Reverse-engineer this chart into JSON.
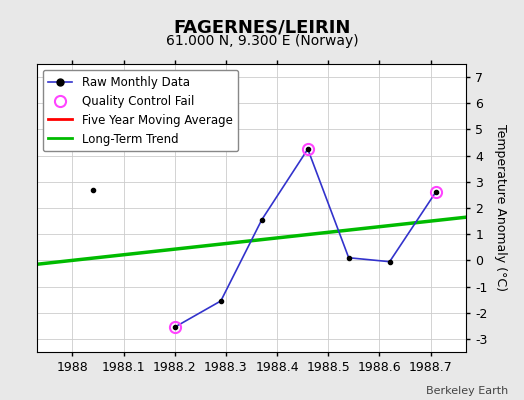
{
  "title": "FAGERNES/LEIRIN",
  "subtitle": "61.000 N, 9.300 E (Norway)",
  "ylabel": "Temperature Anomaly (°C)",
  "credit": "Berkeley Earth",
  "xlim": [
    1987.93,
    1988.77
  ],
  "ylim": [
    -3.5,
    7.5
  ],
  "yticks": [
    -3,
    -2,
    -1,
    0,
    1,
    2,
    3,
    4,
    5,
    6,
    7
  ],
  "xticks": [
    1988.0,
    1988.1,
    1988.2,
    1988.3,
    1988.4,
    1988.5,
    1988.6,
    1988.7
  ],
  "raw_x": [
    1988.04,
    1988.2,
    1988.29,
    1988.37,
    1988.46,
    1988.54,
    1988.62,
    1988.71
  ],
  "raw_y": [
    2.7,
    -2.55,
    -1.55,
    1.55,
    4.25,
    0.1,
    -0.05,
    2.6
  ],
  "qc_fail_indices": [
    1,
    4,
    7
  ],
  "trend_x": [
    1987.93,
    1988.77
  ],
  "trend_y": [
    -0.15,
    1.65
  ],
  "bg_color": "#e8e8e8",
  "plot_bg_color": "#ffffff",
  "raw_line_color": "#3333cc",
  "raw_marker_color": "#000000",
  "qc_marker_color": "#ff44ff",
  "moving_avg_color": "#ff0000",
  "trend_color": "#00bb00",
  "title_fontsize": 13,
  "subtitle_fontsize": 10,
  "axis_label_fontsize": 9,
  "tick_fontsize": 9,
  "legend_fontsize": 8.5,
  "credit_fontsize": 8
}
